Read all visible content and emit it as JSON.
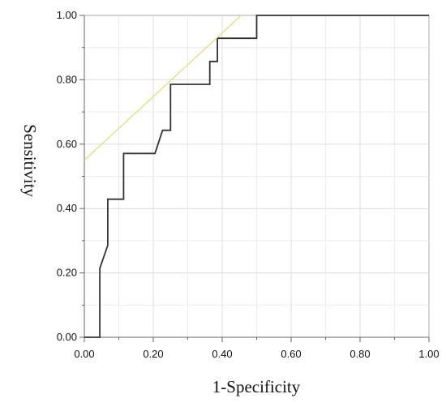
{
  "chart_data": {
    "type": "line",
    "title": "",
    "xlabel": "1-Specificity",
    "ylabel": "Sensitivity",
    "xlim": [
      0,
      1
    ],
    "ylim": [
      0,
      1
    ],
    "grid": true,
    "x_ticks": [
      "0.00",
      "0.20",
      "0.40",
      "0.60",
      "0.80",
      "1.00"
    ],
    "y_ticks": [
      "0.00",
      "0.20",
      "0.40",
      "0.60",
      "0.80",
      "1.00"
    ],
    "series": [
      {
        "color": "#333333",
        "points": [
          [
            0.0,
            0.0
          ],
          [
            0.045,
            0.0
          ],
          [
            0.045,
            0.214
          ],
          [
            0.068,
            0.286
          ],
          [
            0.068,
            0.429
          ],
          [
            0.114,
            0.429
          ],
          [
            0.114,
            0.571
          ],
          [
            0.205,
            0.571
          ],
          [
            0.227,
            0.643
          ],
          [
            0.25,
            0.643
          ],
          [
            0.25,
            0.786
          ],
          [
            0.364,
            0.786
          ],
          [
            0.364,
            0.857
          ],
          [
            0.386,
            0.857
          ],
          [
            0.386,
            0.929
          ],
          [
            0.5,
            0.929
          ],
          [
            0.5,
            1.0
          ],
          [
            1.0,
            1.0
          ]
        ]
      },
      {
        "color": "#e3de74",
        "points": [
          [
            0.0,
            0.55
          ],
          [
            0.455,
            1.0
          ]
        ]
      }
    ]
  }
}
